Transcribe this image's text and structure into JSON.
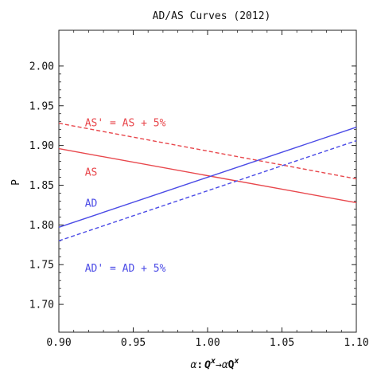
{
  "chart_data": {
    "type": "line",
    "title": "AD/AS Curves (2012)",
    "xlabel_parts": {
      "alpha": "α",
      "sep": ":",
      "q1": "Q",
      "sup1": "x",
      "arrow": "→",
      "alpha2": "α",
      "q2": "Q",
      "sup2": "x"
    },
    "ylabel": "P",
    "xlim": [
      0.9,
      1.1
    ],
    "ylim": [
      1.665,
      2.045
    ],
    "x_ticks": [
      0.9,
      0.95,
      1.0,
      1.05,
      1.1
    ],
    "x_tick_labels": [
      "0.90",
      "0.95",
      "1.00",
      "1.05",
      "1.10"
    ],
    "y_ticks": [
      1.7,
      1.75,
      1.8,
      1.85,
      1.9,
      1.95,
      2.0
    ],
    "y_tick_labels": [
      "1.70",
      "1.75",
      "1.80",
      "1.85",
      "1.90",
      "1.95",
      "2.00"
    ],
    "grid": false,
    "series": [
      {
        "key": "as",
        "x": [
          0.9,
          1.1
        ],
        "y": [
          1.896,
          1.828
        ],
        "color": "#e8474c",
        "dashed": false
      },
      {
        "key": "as_shift",
        "x": [
          0.9,
          1.1
        ],
        "y": [
          1.928,
          1.858
        ],
        "color": "#e8474c",
        "dashed": true
      },
      {
        "key": "ad",
        "x": [
          0.9,
          1.1
        ],
        "y": [
          1.797,
          1.923
        ],
        "color": "#4b4be6",
        "dashed": false
      },
      {
        "key": "ad_shift",
        "x": [
          0.9,
          1.1
        ],
        "y": [
          1.78,
          1.906
        ],
        "color": "#4b4be6",
        "dashed": true
      }
    ],
    "annotations": [
      {
        "key": "as_shift_label",
        "text": "AS' = AS + 5%",
        "x": 0.9175,
        "y": 1.928,
        "color": "#e8474c"
      },
      {
        "key": "as_label",
        "text": "AS",
        "x": 0.9175,
        "y": 1.866,
        "color": "#e8474c"
      },
      {
        "key": "ad_label",
        "text": "AD",
        "x": 0.9175,
        "y": 1.827,
        "color": "#4b4be6"
      },
      {
        "key": "ad_shift_label",
        "text": "AD' = AD + 5%",
        "x": 0.9175,
        "y": 1.745,
        "color": "#4b4be6"
      }
    ]
  }
}
